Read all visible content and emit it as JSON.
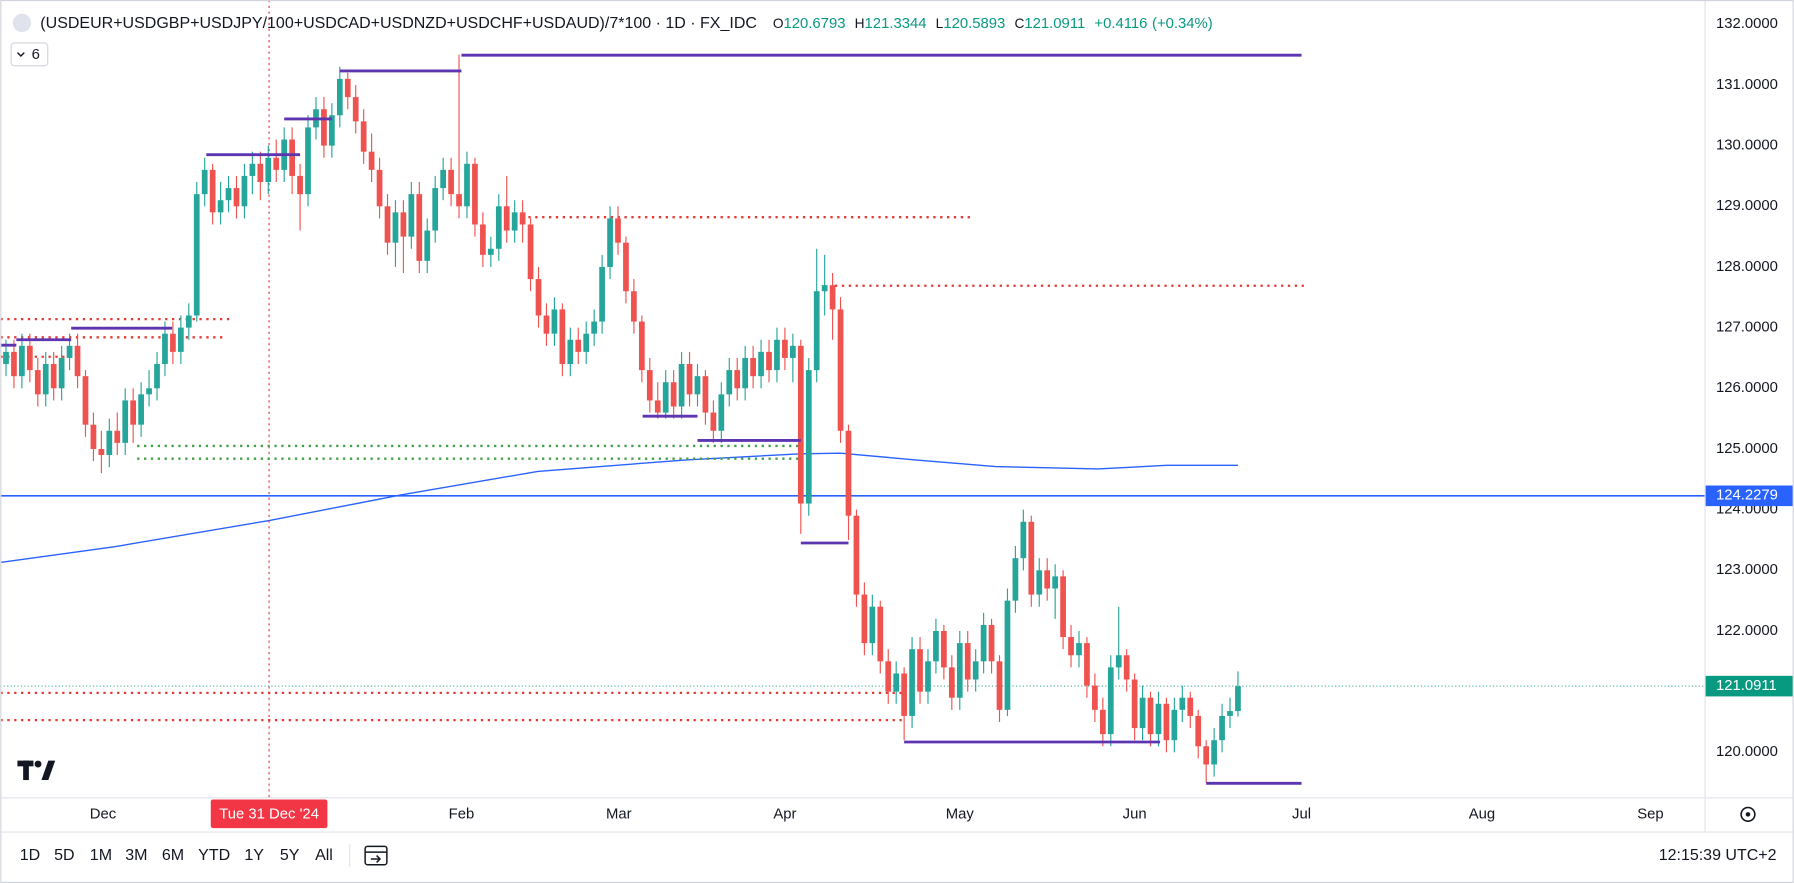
{
  "header": {
    "title": "(USDEUR+USDGBP+USDJPY/100+USDCAD+USDNZD+USDCHF+USDAUD)/7*100 · 1D · FX_IDC",
    "ohlc_labels": [
      "O",
      "H",
      "L",
      "C"
    ],
    "change": "+0.4116",
    "change_pct": "(+0.34%)",
    "badge": "6"
  },
  "toolbar": {
    "ranges": [
      "1D",
      "5D",
      "1M",
      "3M",
      "6M",
      "YTD",
      "1Y",
      "5Y",
      "All"
    ],
    "clock": "12:15:39 UTC+2"
  },
  "chart_data": {
    "type": "candlestick",
    "up_color": "#26a69a",
    "down_color": "#ef5350",
    "xlim": [
      -0.72,
      213.7
    ],
    "ylim": [
      119.26,
      132.4
    ],
    "grid": false,
    "yticks": [
      {
        "value": 120,
        "label": "120.0000"
      },
      {
        "value": 121,
        "label": "121.0000"
      },
      {
        "value": 122,
        "label": "122.0000"
      },
      {
        "value": 123,
        "label": "123.0000"
      },
      {
        "value": 124,
        "label": "124.0000"
      },
      {
        "value": 125,
        "label": "125.0000"
      },
      {
        "value": 126,
        "label": "126.0000"
      },
      {
        "value": 127,
        "label": "127.0000"
      },
      {
        "value": 128,
        "label": "128.0000"
      },
      {
        "value": 129,
        "label": "129.0000"
      },
      {
        "value": 130,
        "label": "130.0000"
      },
      {
        "value": 131,
        "label": "131.0000"
      },
      {
        "value": 132,
        "label": "132.0000"
      }
    ],
    "xticks": [
      {
        "value": 12.2,
        "label": "Dec"
      },
      {
        "value": 57.3,
        "label": "Feb"
      },
      {
        "value": 77.1,
        "label": "Mar"
      },
      {
        "value": 98,
        "label": "Apr"
      },
      {
        "value": 120,
        "label": "May"
      },
      {
        "value": 142,
        "label": "Jun"
      },
      {
        "value": 163,
        "label": "Jul"
      },
      {
        "value": 185.7,
        "label": "Aug"
      },
      {
        "value": 206.9,
        "label": "Sep"
      }
    ],
    "crosshair": {
      "x": 33.1,
      "label": "Tue 31 Dec '24",
      "color": "#f23645"
    },
    "hline": {
      "value": 124.2279,
      "color": "#2962ff"
    },
    "last_color": "#089981",
    "ma": {
      "color": "#2962ff",
      "x": [
        -0.7,
        13.7,
        33.1,
        49.6,
        66.9,
        85.6,
        100,
        105,
        114.4,
        124.5,
        137.4,
        146,
        155
      ],
      "values": [
        123.13,
        123.39,
        123.82,
        124.24,
        124.63,
        124.82,
        124.92,
        124.93,
        124.82,
        124.71,
        124.67,
        124.73,
        124.73
      ]
    },
    "drawings": [
      {
        "color": "#e53935",
        "style": "dotted",
        "segments": [
          [
            -0.7,
            28.1,
            127.14
          ],
          [
            -0.7,
            27.4,
            126.84
          ],
          [
            -0.7,
            8,
            126.52
          ],
          [
            64,
            121.6,
            128.82
          ],
          [
            104.3,
            163.3,
            127.69
          ],
          [
            -0.7,
            113,
            120.98
          ],
          [
            -0.7,
            113,
            120.53
          ]
        ]
      },
      {
        "color": "#43a047",
        "style": "dotted",
        "segments": [
          [
            16.5,
            100,
            125.05
          ],
          [
            16.5,
            100,
            124.84
          ]
        ]
      },
      {
        "color": "#5e35b1",
        "style": "solid",
        "segments": [
          [
            -0.7,
            1.3,
            126.71
          ],
          [
            1.3,
            8.2,
            126.8
          ],
          [
            8.2,
            20.9,
            126.99
          ],
          [
            25.2,
            37,
            129.85
          ],
          [
            35,
            41,
            130.44
          ],
          [
            42,
            57.3,
            131.23
          ],
          [
            57.3,
            163,
            131.49
          ],
          [
            80.1,
            87,
            125.54
          ],
          [
            87,
            100,
            125.14
          ],
          [
            100,
            106,
            123.45
          ],
          [
            113,
            145.2,
            120.17
          ],
          [
            151,
            163,
            119.49
          ]
        ]
      }
    ],
    "ohlc": [
      [
        126.4,
        126.8,
        126.2,
        126.6
      ],
      [
        126.6,
        126.8,
        126.0,
        126.2
      ],
      [
        126.2,
        126.9,
        126.0,
        126.7
      ],
      [
        126.7,
        126.9,
        126.1,
        126.3
      ],
      [
        126.3,
        126.5,
        125.7,
        125.9
      ],
      [
        125.9,
        126.6,
        125.7,
        126.4
      ],
      [
        126.4,
        126.6,
        125.8,
        126.0
      ],
      [
        126.0,
        126.7,
        125.8,
        126.5
      ],
      [
        126.5,
        126.9,
        126.3,
        126.7
      ],
      [
        126.7,
        126.9,
        126.0,
        126.2
      ],
      [
        126.2,
        126.3,
        125.2,
        125.4
      ],
      [
        125.4,
        125.6,
        124.8,
        125.0
      ],
      [
        125.0,
        125.3,
        124.6,
        124.9
      ],
      [
        124.9,
        125.5,
        124.7,
        125.3
      ],
      [
        125.3,
        125.6,
        124.9,
        125.1
      ],
      [
        125.1,
        126.0,
        124.9,
        125.8
      ],
      [
        125.8,
        126.0,
        125.1,
        125.4
      ],
      [
        125.4,
        126.1,
        125.2,
        125.9
      ],
      [
        125.9,
        126.3,
        125.7,
        126.0
      ],
      [
        126.0,
        126.6,
        125.8,
        126.4
      ],
      [
        126.4,
        127.1,
        126.2,
        126.9
      ],
      [
        126.9,
        127.1,
        126.4,
        126.6
      ],
      [
        126.6,
        127.2,
        126.4,
        127.0
      ],
      [
        127.0,
        127.4,
        126.8,
        127.2
      ],
      [
        127.2,
        129.4,
        127.1,
        129.2
      ],
      [
        129.2,
        129.8,
        129.0,
        129.6
      ],
      [
        129.6,
        129.7,
        128.7,
        128.9
      ],
      [
        128.9,
        129.4,
        128.7,
        129.1
      ],
      [
        129.1,
        129.5,
        128.9,
        129.3
      ],
      [
        129.3,
        129.5,
        128.8,
        129.0
      ],
      [
        129.0,
        129.7,
        128.8,
        129.5
      ],
      [
        129.5,
        129.9,
        129.2,
        129.7
      ],
      [
        129.7,
        129.9,
        129.1,
        129.4
      ],
      [
        129.4,
        130.0,
        129.2,
        129.8
      ],
      [
        129.8,
        130.1,
        129.4,
        129.6
      ],
      [
        129.6,
        130.3,
        129.4,
        130.1
      ],
      [
        130.1,
        130.3,
        129.2,
        129.5
      ],
      [
        129.5,
        129.7,
        128.6,
        129.2
      ],
      [
        129.2,
        130.5,
        129.0,
        130.3
      ],
      [
        130.3,
        130.8,
        130.1,
        130.6
      ],
      [
        130.6,
        130.8,
        129.8,
        130.0
      ],
      [
        130.0,
        130.7,
        129.8,
        130.5
      ],
      [
        130.5,
        131.3,
        130.3,
        131.1
      ],
      [
        131.1,
        131.2,
        130.6,
        130.8
      ],
      [
        130.8,
        131.0,
        130.2,
        130.4
      ],
      [
        130.4,
        130.6,
        129.7,
        129.9
      ],
      [
        129.9,
        130.2,
        129.4,
        129.6
      ],
      [
        129.6,
        129.8,
        128.8,
        129.0
      ],
      [
        129.0,
        129.2,
        128.2,
        128.4
      ],
      [
        128.4,
        129.1,
        128.0,
        128.9
      ],
      [
        128.9,
        129.1,
        127.9,
        128.5
      ],
      [
        128.5,
        129.4,
        128.3,
        129.2
      ],
      [
        129.2,
        129.4,
        127.9,
        128.1
      ],
      [
        128.1,
        128.8,
        127.9,
        128.6
      ],
      [
        128.6,
        129.5,
        128.4,
        129.3
      ],
      [
        129.3,
        129.8,
        129.1,
        129.6
      ],
      [
        129.6,
        129.8,
        129.0,
        129.2
      ],
      [
        129.2,
        131.5,
        128.8,
        129.0
      ],
      [
        129.0,
        129.9,
        128.8,
        129.7
      ],
      [
        129.7,
        129.8,
        128.5,
        128.7
      ],
      [
        128.7,
        128.9,
        128.0,
        128.2
      ],
      [
        128.2,
        128.5,
        128.0,
        128.3
      ],
      [
        128.3,
        129.2,
        128.1,
        129.0
      ],
      [
        129.0,
        129.5,
        128.4,
        128.6
      ],
      [
        128.6,
        129.1,
        128.4,
        128.9
      ],
      [
        128.9,
        129.1,
        128.4,
        128.7
      ],
      [
        128.7,
        128.8,
        127.6,
        127.8
      ],
      [
        127.8,
        128.0,
        127.0,
        127.2
      ],
      [
        127.2,
        127.4,
        126.7,
        126.9
      ],
      [
        126.9,
        127.5,
        126.7,
        127.3
      ],
      [
        127.3,
        127.4,
        126.2,
        126.4
      ],
      [
        126.4,
        127.0,
        126.2,
        126.8
      ],
      [
        126.8,
        127.0,
        126.4,
        126.6
      ],
      [
        126.6,
        127.1,
        126.4,
        126.9
      ],
      [
        126.9,
        127.3,
        126.7,
        127.1
      ],
      [
        127.1,
        128.2,
        126.9,
        128.0
      ],
      [
        128.0,
        129.0,
        127.8,
        128.8
      ],
      [
        128.8,
        129.0,
        128.2,
        128.4
      ],
      [
        128.4,
        128.5,
        127.4,
        127.6
      ],
      [
        127.6,
        127.8,
        126.9,
        127.1
      ],
      [
        127.1,
        127.2,
        126.1,
        126.3
      ],
      [
        126.3,
        126.5,
        125.6,
        125.8
      ],
      [
        125.8,
        126.1,
        125.5,
        125.6
      ],
      [
        125.6,
        126.3,
        125.5,
        126.1
      ],
      [
        126.1,
        126.3,
        125.5,
        125.7
      ],
      [
        125.7,
        126.6,
        125.5,
        126.4
      ],
      [
        126.4,
        126.6,
        125.7,
        125.9
      ],
      [
        125.9,
        126.4,
        125.7,
        126.2
      ],
      [
        126.2,
        126.3,
        125.4,
        125.6
      ],
      [
        125.6,
        125.8,
        125.1,
        125.3
      ],
      [
        125.3,
        126.1,
        125.1,
        125.9
      ],
      [
        125.9,
        126.5,
        125.7,
        126.3
      ],
      [
        126.3,
        126.5,
        125.8,
        126.0
      ],
      [
        126.0,
        126.7,
        125.8,
        126.5
      ],
      [
        126.5,
        126.7,
        126.0,
        126.2
      ],
      [
        126.2,
        126.8,
        126.0,
        126.6
      ],
      [
        126.6,
        126.8,
        126.1,
        126.3
      ],
      [
        126.3,
        127.0,
        126.1,
        126.8
      ],
      [
        126.8,
        127.0,
        126.3,
        126.5
      ],
      [
        126.5,
        126.9,
        126.1,
        126.7
      ],
      [
        126.7,
        126.8,
        123.6,
        124.1
      ],
      [
        124.1,
        126.5,
        123.9,
        126.3
      ],
      [
        126.3,
        128.3,
        126.1,
        127.6
      ],
      [
        127.6,
        128.2,
        127.2,
        127.7
      ],
      [
        127.7,
        127.9,
        126.8,
        127.3
      ],
      [
        127.3,
        127.5,
        125.1,
        125.3
      ],
      [
        125.3,
        125.4,
        123.5,
        123.9
      ],
      [
        123.9,
        124.0,
        122.4,
        122.6
      ],
      [
        122.6,
        122.8,
        121.6,
        121.8
      ],
      [
        121.8,
        122.6,
        121.6,
        122.4
      ],
      [
        122.4,
        122.5,
        121.3,
        121.5
      ],
      [
        121.5,
        121.7,
        120.8,
        121.0
      ],
      [
        121.0,
        121.5,
        120.8,
        121.3
      ],
      [
        121.3,
        121.4,
        120.2,
        120.6
      ],
      [
        120.6,
        121.9,
        120.4,
        121.7
      ],
      [
        121.7,
        121.9,
        120.8,
        121.0
      ],
      [
        121.0,
        121.7,
        120.8,
        121.5
      ],
      [
        121.5,
        122.2,
        121.3,
        122.0
      ],
      [
        122.0,
        122.1,
        121.2,
        121.4
      ],
      [
        121.4,
        121.6,
        120.7,
        120.9
      ],
      [
        120.9,
        122.0,
        120.7,
        121.8
      ],
      [
        121.8,
        122.0,
        121.0,
        121.2
      ],
      [
        121.2,
        121.7,
        121.0,
        121.5
      ],
      [
        121.5,
        122.3,
        121.3,
        122.1
      ],
      [
        122.1,
        122.2,
        121.3,
        121.5
      ],
      [
        121.5,
        121.6,
        120.5,
        120.7
      ],
      [
        120.7,
        122.7,
        120.6,
        122.5
      ],
      [
        122.5,
        123.4,
        122.3,
        123.2
      ],
      [
        123.2,
        124.0,
        123.0,
        123.8
      ],
      [
        123.8,
        123.9,
        122.4,
        122.6
      ],
      [
        122.6,
        123.2,
        122.4,
        123.0
      ],
      [
        123.0,
        123.2,
        122.5,
        122.7
      ],
      [
        122.7,
        123.1,
        122.2,
        122.9
      ],
      [
        122.9,
        123.0,
        121.7,
        121.9
      ],
      [
        121.9,
        122.1,
        121.4,
        121.6
      ],
      [
        121.6,
        122.0,
        121.4,
        121.8
      ],
      [
        121.8,
        121.9,
        120.9,
        121.1
      ],
      [
        121.1,
        121.3,
        120.5,
        120.7
      ],
      [
        120.7,
        120.9,
        120.1,
        120.3
      ],
      [
        120.3,
        121.6,
        120.1,
        121.4
      ],
      [
        121.4,
        122.4,
        121.2,
        121.6
      ],
      [
        121.6,
        121.7,
        121.0,
        121.2
      ],
      [
        121.2,
        121.3,
        120.2,
        120.4
      ],
      [
        120.4,
        121.1,
        120.2,
        120.9
      ],
      [
        120.9,
        121.0,
        120.1,
        120.3
      ],
      [
        120.3,
        121.0,
        120.1,
        120.8
      ],
      [
        120.8,
        120.9,
        120.0,
        120.2
      ],
      [
        120.2,
        120.9,
        120.0,
        120.7
      ],
      [
        120.7,
        121.1,
        120.5,
        120.9
      ],
      [
        120.9,
        121.0,
        120.4,
        120.6
      ],
      [
        120.6,
        120.7,
        119.9,
        120.1
      ],
      [
        120.1,
        120.2,
        119.5,
        119.8
      ],
      [
        119.8,
        120.4,
        119.6,
        120.2
      ],
      [
        120.2,
        120.8,
        120.0,
        120.6
      ],
      [
        120.6,
        120.9,
        120.4,
        120.68
      ],
      [
        120.6793,
        121.3344,
        120.5893,
        121.0911
      ]
    ]
  }
}
